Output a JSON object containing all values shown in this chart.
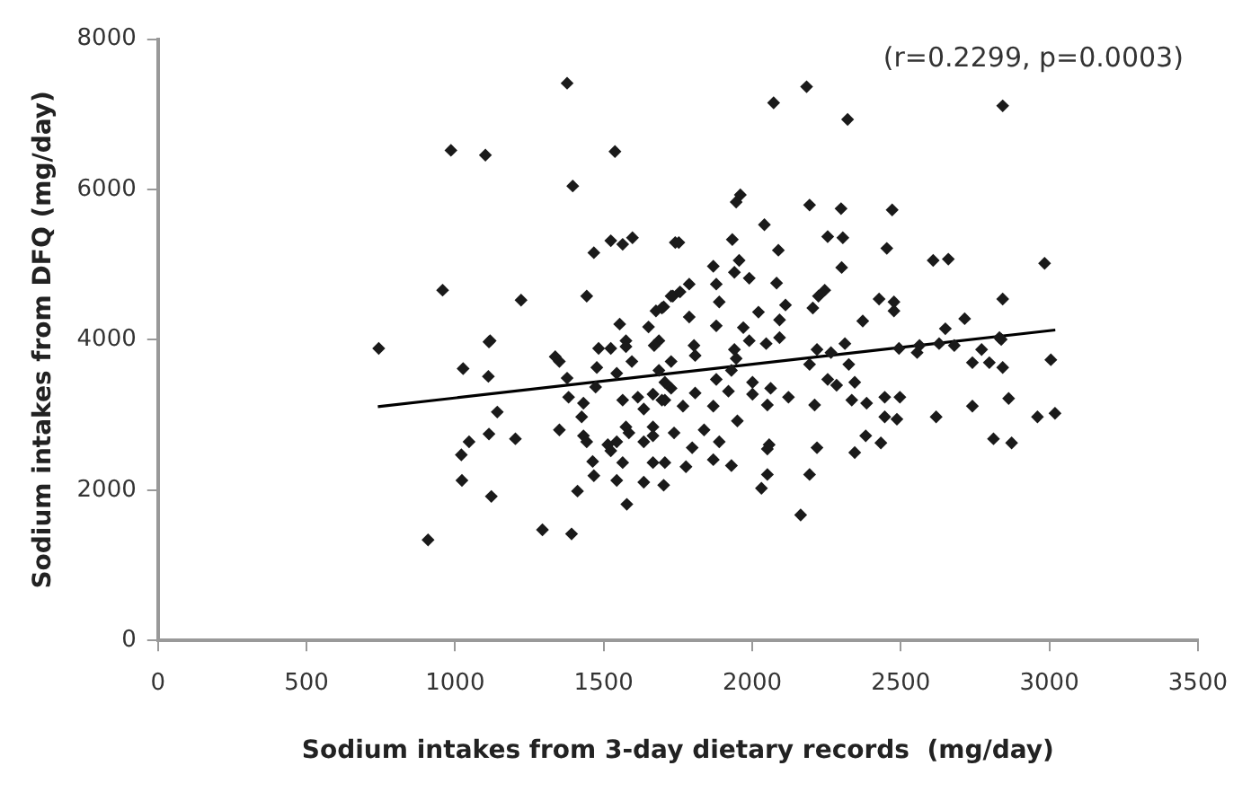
{
  "chart_data": {
    "type": "scatter",
    "xlabel": "Sodium intakes from 3-day dietary records  (mg/day)",
    "ylabel": "Sodium intakes from DFQ (mg/day)",
    "annotations": [
      "(r=0.2299, p=0.0003)"
    ],
    "xlim": [
      0,
      3500
    ],
    "xticks": [
      0,
      500,
      1000,
      1500,
      2000,
      2500,
      3000,
      3500
    ],
    "ylim": [
      0,
      8000
    ],
    "yticks": [
      0,
      2000,
      4000,
      6000,
      8000
    ],
    "grid": false,
    "legend": false,
    "marker": "diamond",
    "series": [
      {
        "color": "#1a1a1a",
        "x": [
          1377,
          986,
          1102,
          1538,
          1396,
          1467,
          1524,
          1564,
          1597,
          1741,
          958,
          1222,
          1443,
          1554,
          1651,
          1676,
          1702,
          1733,
          1118,
          1575,
          1686,
          2183,
          2072,
          2321,
          2843,
          1960,
          1946,
          2193,
          2299,
          2471,
          2041,
          1753,
          1933,
          2254,
          2305,
          2088,
          2453,
          2609,
          2660,
          2984,
          2301,
          1869,
          1956,
          1940,
          1990,
          1879,
          2082,
          1788,
          1757,
          1727,
          1889,
          2244,
          2223,
          2112,
          2204,
          2427,
          2477,
          2477,
          2843,
          1696,
          1788,
          2021,
          2092,
          1879,
          1970,
          2372,
          2650,
          2715,
          2832,
          743,
          1027,
          1114,
          1112,
          1142,
          1114,
          1203,
          1047,
          1021,
          1023,
          1122,
          909,
          1294,
          1392,
          1412,
          1351,
          1337,
          1351,
          1377,
          1382,
          1432,
          1426,
          1432,
          1443,
          1463,
          1467,
          1477,
          1483,
          1524,
          1575,
          1670,
          1595,
          1544,
          1473,
          1564,
          1615,
          1666,
          1635,
          1706,
          1706,
          1575,
          1544,
          1514,
          1524,
          1585,
          1635,
          1666,
          1666,
          1564,
          1666,
          1706,
          1544,
          1635,
          1702,
          1578,
          1737,
          2092,
          1990,
          2047,
          1804,
          1808,
          1940,
          1946,
          2218,
          2265,
          2312,
          2494,
          2563,
          2555,
          2629,
          2680,
          2772,
          2838,
          2741,
          2798,
          2843,
          3005,
          1727,
          1686,
          2193,
          2325,
          1879,
          1930,
          2001,
          2062,
          2122,
          2254,
          2284,
          2345,
          2335,
          2210,
          2385,
          2446,
          2497,
          2446,
          2487,
          2619,
          2741,
          2863,
          2960,
          3019,
          2812,
          2873,
          2382,
          2433,
          2345,
          2218,
          2057,
          2051,
          2193,
          2051,
          2031,
          2163,
          1777,
          1869,
          1930,
          1889,
          1838,
          1798,
          1950,
          1869,
          1767,
          1696,
          2001,
          2051,
          1808,
          1727,
          1920
        ],
        "values": [
          7414,
          6521,
          6457,
          6505,
          6046,
          5159,
          5318,
          5270,
          5358,
          5294,
          4660,
          4527,
          4582,
          4209,
          4171,
          4385,
          4439,
          4582,
          3988,
          3988,
          3988,
          7367,
          7153,
          6932,
          7113,
          5928,
          5833,
          5793,
          5745,
          5729,
          5531,
          5294,
          5334,
          5373,
          5358,
          5192,
          5216,
          5057,
          5073,
          5017,
          4962,
          4978,
          5057,
          4898,
          4819,
          4741,
          4755,
          4741,
          4637,
          4582,
          4503,
          4660,
          4582,
          4463,
          4423,
          4542,
          4503,
          4385,
          4542,
          4423,
          4304,
          4368,
          4265,
          4186,
          4162,
          4250,
          4147,
          4281,
          4028,
          3886,
          3616,
          3972,
          3513,
          3039,
          2746,
          2683,
          2643,
          2469,
          2129,
          1916,
          1337,
          1472,
          1417,
          1987,
          2801,
          3775,
          3711,
          3490,
          3236,
          3157,
          2975,
          2722,
          2643,
          2381,
          2192,
          3632,
          3886,
          3886,
          3910,
          3925,
          3711,
          3553,
          3371,
          3197,
          3236,
          3276,
          3079,
          3197,
          3435,
          2841,
          2643,
          2604,
          2524,
          2761,
          2643,
          2841,
          2722,
          2366,
          2366,
          2366,
          2129,
          2106,
          2065,
          1811,
          2761,
          4028,
          3988,
          3949,
          3925,
          3791,
          3870,
          3751,
          3870,
          3830,
          3949,
          3886,
          3925,
          3830,
          3949,
          3925,
          3870,
          4005,
          3696,
          3696,
          3632,
          3734,
          3711,
          3593,
          3672,
          3672,
          3474,
          3593,
          3435,
          3355,
          3236,
          3474,
          3395,
          3435,
          3197,
          3133,
          3157,
          3236,
          3236,
          2975,
          2943,
          2975,
          3117,
          3220,
          2975,
          3022,
          2683,
          2627,
          2722,
          2627,
          2500,
          2564,
          2604,
          2548,
          2208,
          2208,
          2025,
          1669,
          2311,
          2405,
          2327,
          2643,
          2801,
          2564,
          2920,
          3117,
          3117,
          3197,
          3276,
          3133,
          3292,
          3355,
          3316
        ]
      },
      {
        "type": "line",
        "color": "#000000",
        "marker": "none",
        "x": [
          740,
          3020
        ],
        "values": [
          3110,
          4130
        ]
      }
    ]
  }
}
